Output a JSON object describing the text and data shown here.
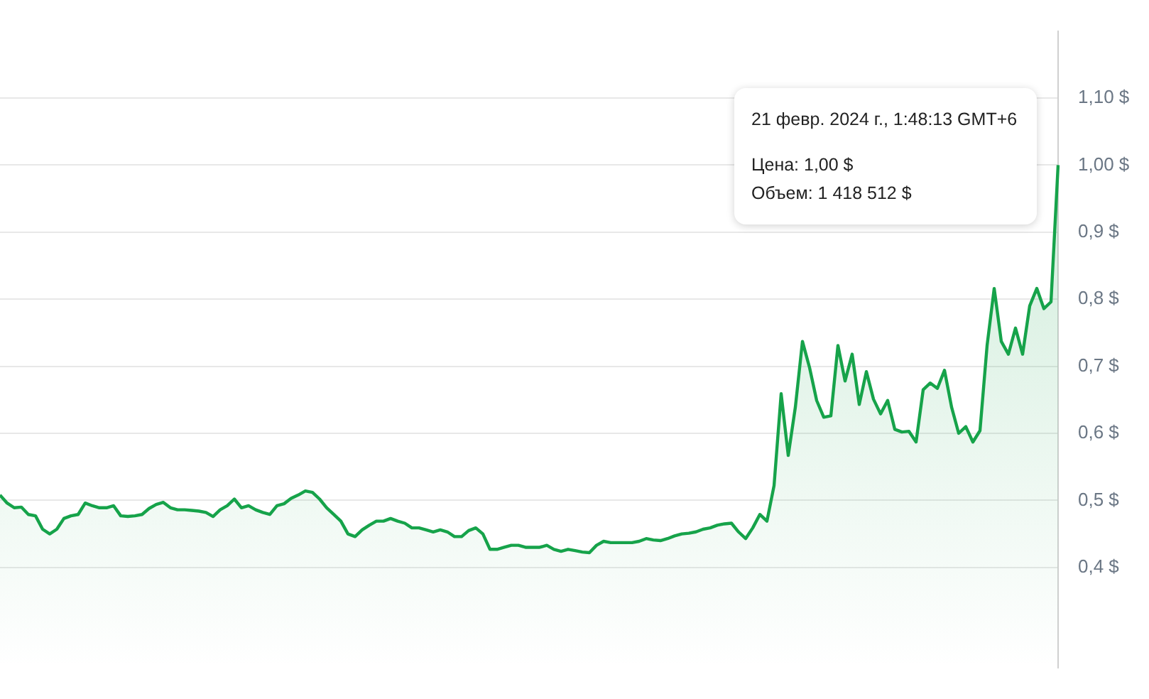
{
  "chart_data": {
    "type": "area",
    "categories": [
      null,
      null,
      null,
      null,
      null,
      null,
      null,
      null,
      null,
      null,
      null,
      null,
      null,
      null,
      null,
      null,
      null,
      null,
      null,
      null,
      null,
      null,
      null,
      null,
      null,
      null,
      null,
      null,
      null,
      null,
      null,
      null,
      null,
      null,
      null,
      null,
      null,
      null,
      null,
      null,
      null,
      null,
      null,
      null,
      null,
      null,
      null,
      null,
      null,
      null,
      null,
      null,
      null,
      null,
      null,
      null,
      null,
      null,
      null,
      null,
      null,
      null,
      null,
      null,
      null,
      null,
      null,
      null,
      null,
      null,
      null,
      null,
      null,
      null,
      null,
      null,
      null,
      null,
      null,
      null,
      null,
      null,
      null,
      null,
      null,
      null,
      null,
      null,
      null,
      null,
      null,
      null,
      null,
      null,
      null,
      null,
      null,
      null,
      null,
      null,
      null,
      null,
      null,
      null,
      null,
      null,
      null,
      null,
      null,
      null,
      null,
      null,
      null,
      null,
      null,
      null,
      null,
      null,
      null,
      null,
      null,
      null,
      null,
      null,
      null,
      null,
      null,
      null,
      null,
      null,
      null,
      null,
      null,
      null,
      null,
      null,
      null,
      null,
      null,
      null,
      null,
      null,
      null,
      null,
      null,
      null,
      null,
      null,
      null,
      null
    ],
    "series": [
      {
        "color": "#16a34a",
        "values": [
          0.508,
          0.496,
          0.489,
          0.49,
          0.479,
          0.477,
          0.457,
          0.45,
          0.457,
          0.473,
          0.477,
          0.479,
          0.496,
          0.492,
          0.489,
          0.489,
          0.492,
          0.477,
          0.476,
          0.477,
          0.479,
          0.488,
          0.494,
          0.497,
          0.489,
          0.486,
          0.486,
          0.485,
          0.484,
          0.482,
          0.476,
          0.486,
          0.492,
          0.502,
          0.489,
          0.492,
          0.486,
          0.482,
          0.479,
          0.492,
          0.495,
          0.503,
          0.508,
          0.514,
          0.512,
          0.502,
          0.489,
          0.479,
          0.469,
          0.45,
          0.446,
          0.456,
          0.463,
          0.469,
          0.469,
          0.473,
          0.469,
          0.466,
          0.459,
          0.459,
          0.456,
          0.453,
          0.456,
          0.453,
          0.446,
          0.446,
          0.455,
          0.459,
          0.45,
          0.427,
          0.427,
          0.43,
          0.433,
          0.433,
          0.43,
          0.43,
          0.43,
          0.433,
          0.427,
          0.424,
          0.427,
          0.425,
          0.423,
          0.422,
          0.433,
          0.439,
          0.437,
          0.437,
          0.437,
          0.437,
          0.439,
          0.443,
          0.441,
          0.44,
          0.443,
          0.447,
          0.45,
          0.451,
          0.453,
          0.457,
          0.459,
          0.463,
          0.465,
          0.466,
          0.453,
          0.443,
          0.459,
          0.479,
          0.469,
          0.522,
          0.659,
          0.567,
          0.639,
          0.737,
          0.698,
          0.649,
          0.624,
          0.626,
          0.731,
          0.678,
          0.718,
          0.643,
          0.692,
          0.651,
          0.629,
          0.649,
          0.606,
          0.602,
          0.603,
          0.587,
          0.665,
          0.675,
          0.667,
          0.694,
          0.639,
          0.6,
          0.61,
          0.587,
          0.604,
          0.731,
          0.816,
          0.737,
          0.718,
          0.757,
          0.718,
          0.79,
          0.816,
          0.786,
          0.796,
          1.0
        ]
      }
    ],
    "ylim": [
      0.25,
      1.2
    ],
    "yticks": [
      {
        "value": 0.4,
        "label": "0,4 $"
      },
      {
        "value": 0.5,
        "label": "0,5 $"
      },
      {
        "value": 0.6,
        "label": "0,6 $"
      },
      {
        "value": 0.7,
        "label": "0,7 $"
      },
      {
        "value": 0.8,
        "label": "0,8 $"
      },
      {
        "value": 0.9,
        "label": "0,9 $"
      },
      {
        "value": 1.0,
        "label": "1,00 $"
      },
      {
        "value": 1.1,
        "label": "1,10 $"
      }
    ],
    "tick_labels": "y",
    "grid": "y",
    "legend": false,
    "marker": "none",
    "line_style": "solid",
    "annotations": [
      "21 февр. 2024 г., 1:48:13 GMT+6",
      "Цена: 1,00 $",
      "Объем: 1 418 512 $"
    ]
  }
}
